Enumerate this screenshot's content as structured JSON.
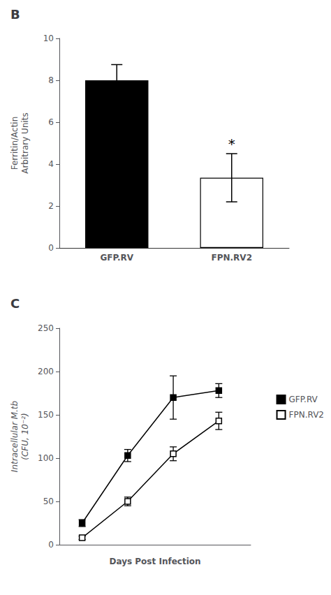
{
  "chart_data": [
    {
      "type": "bar",
      "title": "B",
      "categories": [
        "GFP.RV",
        "FPN.RV2"
      ],
      "values": [
        8.0,
        3.35
      ],
      "errors": [
        0.75,
        1.15
      ],
      "colors": [
        "#000000",
        "#ffffff"
      ],
      "ylabel": "Ferritin/Actin\nArbitrary Units",
      "ylim": [
        0,
        10
      ],
      "yticks": [
        0,
        2,
        4,
        6,
        8,
        10
      ],
      "annotations": [
        {
          "text": "*",
          "category": "FPN.RV2"
        }
      ],
      "grid": false
    },
    {
      "type": "line",
      "title": "C",
      "x": [
        1,
        2,
        3,
        4
      ],
      "series": [
        {
          "name": "GFP.RV",
          "color": "#000000",
          "marker": "filled_square",
          "values": [
            25,
            103,
            170,
            178
          ],
          "errors": [
            4,
            7,
            25,
            8
          ]
        },
        {
          "name": "FPN.RV2",
          "color": "#000000",
          "marker": "open_square",
          "values": [
            8,
            50,
            105,
            143
          ],
          "errors": [
            2,
            5,
            8,
            10
          ]
        }
      ],
      "xlabel": "Days Post Infection",
      "ylabel": "Intracellular M.tb\n(CFU, 10⁻²)",
      "xlim": [
        0.5,
        4.7
      ],
      "ylim": [
        0,
        250
      ],
      "yticks": [
        0,
        50,
        100,
        150,
        200,
        250
      ],
      "tick_labels": "y",
      "grid": false,
      "legend": "right"
    }
  ]
}
